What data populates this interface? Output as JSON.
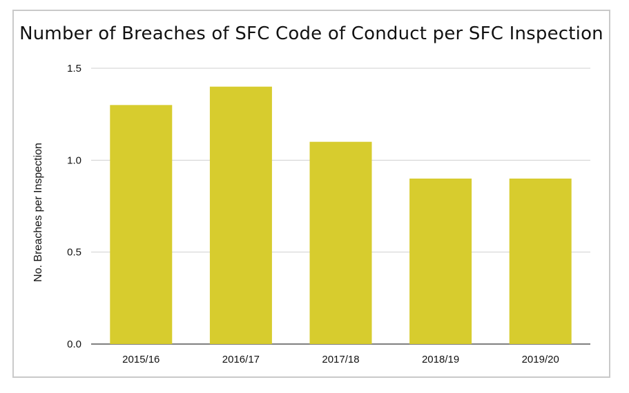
{
  "chart_data": {
    "type": "bar",
    "title": "Number of Breaches of SFC Code of Conduct per SFC Inspection",
    "xlabel": "",
    "ylabel": "No. Breaches per Inspection",
    "categories": [
      "2015/16",
      "2016/17",
      "2017/18",
      "2018/19",
      "2019/20"
    ],
    "values": [
      1.3,
      1.4,
      1.1,
      0.9,
      0.9
    ],
    "ylim": [
      0,
      1.5
    ],
    "yticks": [
      "0.0",
      "0.5",
      "1.0",
      "1.5"
    ],
    "grid": true,
    "legend": "none",
    "bar_color": "#d7cc2e"
  }
}
